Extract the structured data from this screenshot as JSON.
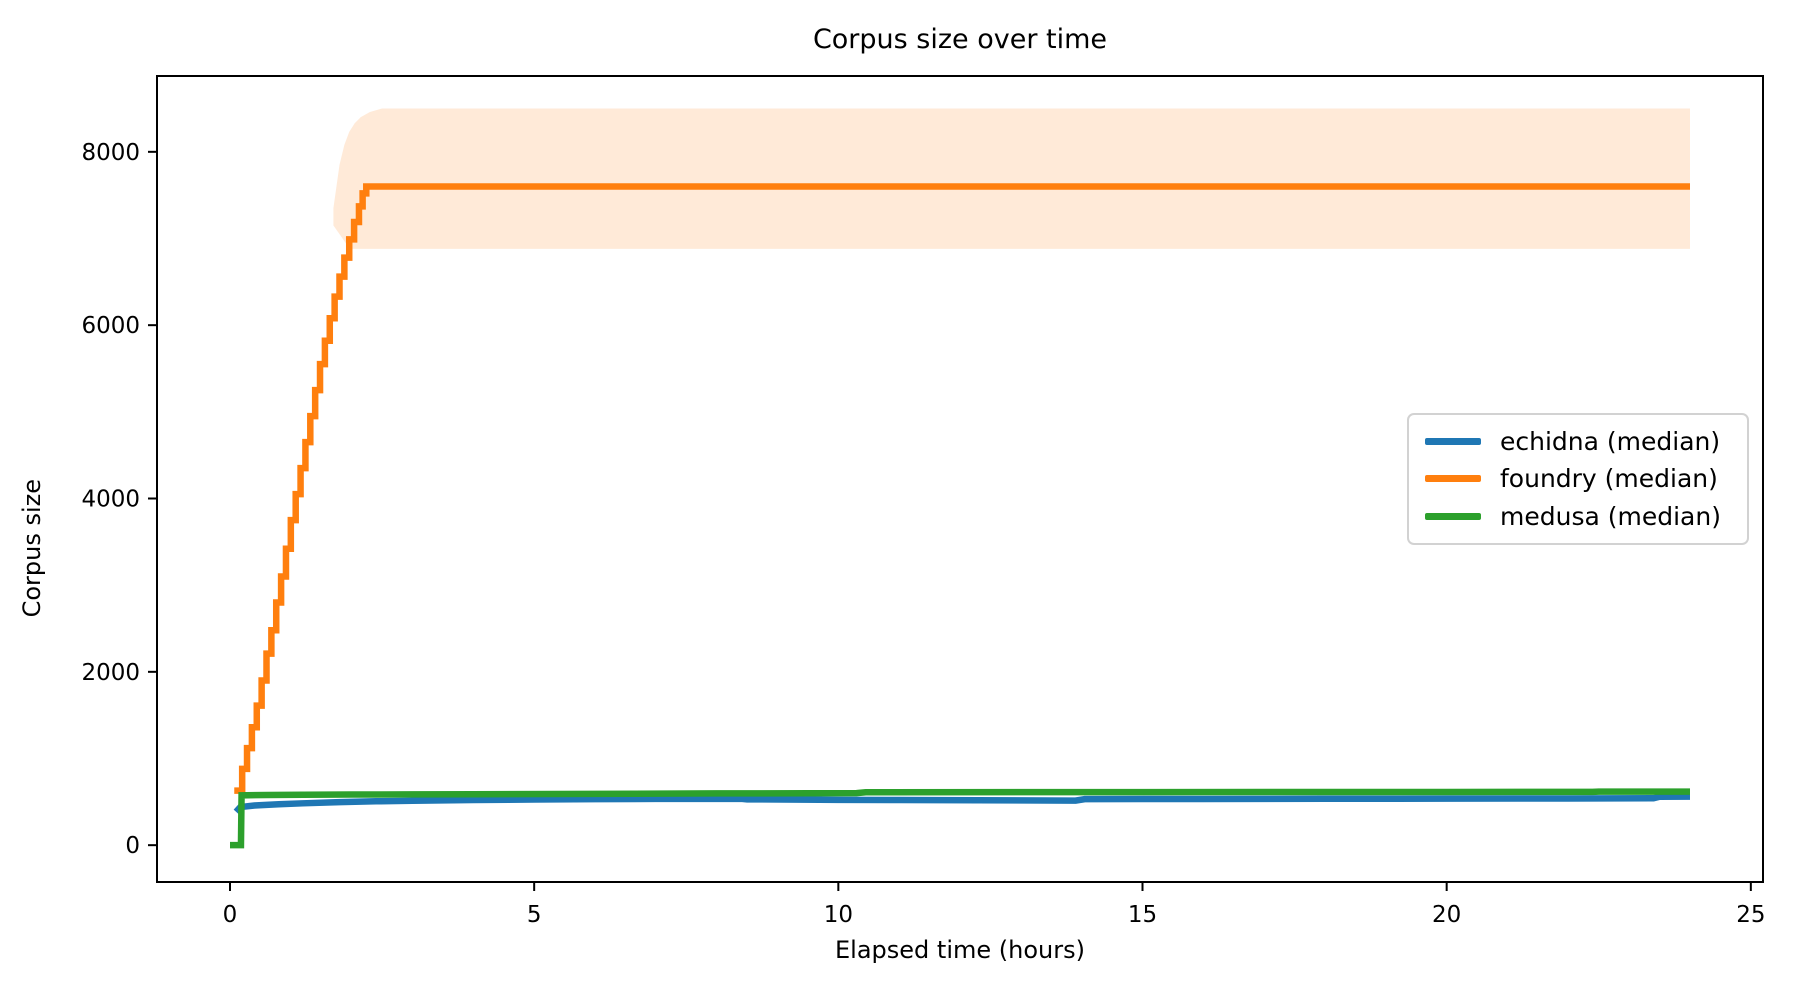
{
  "chart": {
    "title": "Corpus size over time",
    "xlabel": "Elapsed time (hours)",
    "ylabel": "Corpus size"
  },
  "legend": {
    "items": [
      {
        "label": "echidna (median)",
        "color": "#1f77b4"
      },
      {
        "label": "foundry (median)",
        "color": "#ff7f0e"
      },
      {
        "label": "medusa (median)",
        "color": "#2ca02c"
      }
    ]
  },
  "chart_data": {
    "type": "line",
    "title": "Corpus size over time",
    "xlabel": "Elapsed time (hours)",
    "ylabel": "Corpus size",
    "xlim": [
      -1.2,
      25.2
    ],
    "ylim": [
      -425,
      8875
    ],
    "x_ticks": [
      0,
      5,
      10,
      15,
      20,
      25
    ],
    "y_ticks": [
      0,
      2000,
      4000,
      6000,
      8000
    ],
    "grid": false,
    "legend_position": "center right",
    "series": [
      {
        "name": "echidna (median)",
        "color": "#1f77b4",
        "style": "line",
        "points": [
          [
            0.1,
            385
          ],
          [
            0.17,
            440
          ],
          [
            0.4,
            458
          ],
          [
            0.8,
            472
          ],
          [
            1.2,
            483
          ],
          [
            1.8,
            496
          ],
          [
            2.4,
            506
          ],
          [
            3,
            513
          ],
          [
            4,
            521
          ],
          [
            5,
            527
          ],
          [
            6,
            531
          ],
          [
            7,
            534
          ],
          [
            8.4,
            535
          ],
          [
            8.5,
            529
          ],
          [
            10,
            523
          ],
          [
            11,
            521
          ],
          [
            13.9,
            514
          ],
          [
            14.05,
            531
          ],
          [
            16,
            533
          ],
          [
            18,
            535
          ],
          [
            20,
            537
          ],
          [
            22,
            539
          ],
          [
            23.4,
            541
          ],
          [
            23.5,
            559
          ],
          [
            24,
            560
          ]
        ]
      },
      {
        "name": "foundry (median)",
        "color": "#ff7f0e",
        "style": "step",
        "points": [
          [
            0.07,
            630
          ],
          [
            0.2,
            880
          ],
          [
            0.28,
            1120
          ],
          [
            0.36,
            1360
          ],
          [
            0.44,
            1610
          ],
          [
            0.52,
            1900
          ],
          [
            0.6,
            2210
          ],
          [
            0.68,
            2480
          ],
          [
            0.76,
            2800
          ],
          [
            0.84,
            3100
          ],
          [
            0.92,
            3420
          ],
          [
            1.0,
            3750
          ],
          [
            1.08,
            4050
          ],
          [
            1.16,
            4350
          ],
          [
            1.24,
            4650
          ],
          [
            1.32,
            4950
          ],
          [
            1.4,
            5250
          ],
          [
            1.48,
            5550
          ],
          [
            1.56,
            5820
          ],
          [
            1.64,
            6080
          ],
          [
            1.72,
            6330
          ],
          [
            1.8,
            6560
          ],
          [
            1.88,
            6780
          ],
          [
            1.96,
            6990
          ],
          [
            2.04,
            7190
          ],
          [
            2.12,
            7370
          ],
          [
            2.18,
            7520
          ],
          [
            2.24,
            7600
          ],
          [
            24,
            7600
          ]
        ]
      },
      {
        "name": "medusa (median)",
        "color": "#2ca02c",
        "style": "line",
        "points": [
          [
            0,
            0
          ],
          [
            0.18,
            0
          ],
          [
            0.19,
            575
          ],
          [
            0.6,
            579
          ],
          [
            1.2,
            582
          ],
          [
            2,
            584
          ],
          [
            3,
            586
          ],
          [
            4,
            588
          ],
          [
            6,
            592
          ],
          [
            8,
            597
          ],
          [
            10.3,
            601
          ],
          [
            10.45,
            611
          ],
          [
            14,
            612
          ],
          [
            18,
            613
          ],
          [
            20,
            614
          ],
          [
            22.4,
            615
          ],
          [
            22.5,
            618
          ],
          [
            24,
            618
          ]
        ]
      }
    ],
    "bands": [
      {
        "name": "foundry interquartile band",
        "color": "#ff7f0e",
        "opacity": 0.16,
        "upper": [
          [
            1.7,
            7350
          ],
          [
            1.8,
            7850
          ],
          [
            1.88,
            8080
          ],
          [
            1.96,
            8230
          ],
          [
            2.05,
            8330
          ],
          [
            2.15,
            8400
          ],
          [
            2.3,
            8460
          ],
          [
            2.5,
            8500
          ],
          [
            24,
            8500
          ]
        ],
        "lower": [
          [
            1.7,
            7150
          ],
          [
            1.8,
            7050
          ],
          [
            1.9,
            6950
          ],
          [
            2.0,
            6880
          ],
          [
            24,
            6880
          ]
        ]
      }
    ]
  }
}
